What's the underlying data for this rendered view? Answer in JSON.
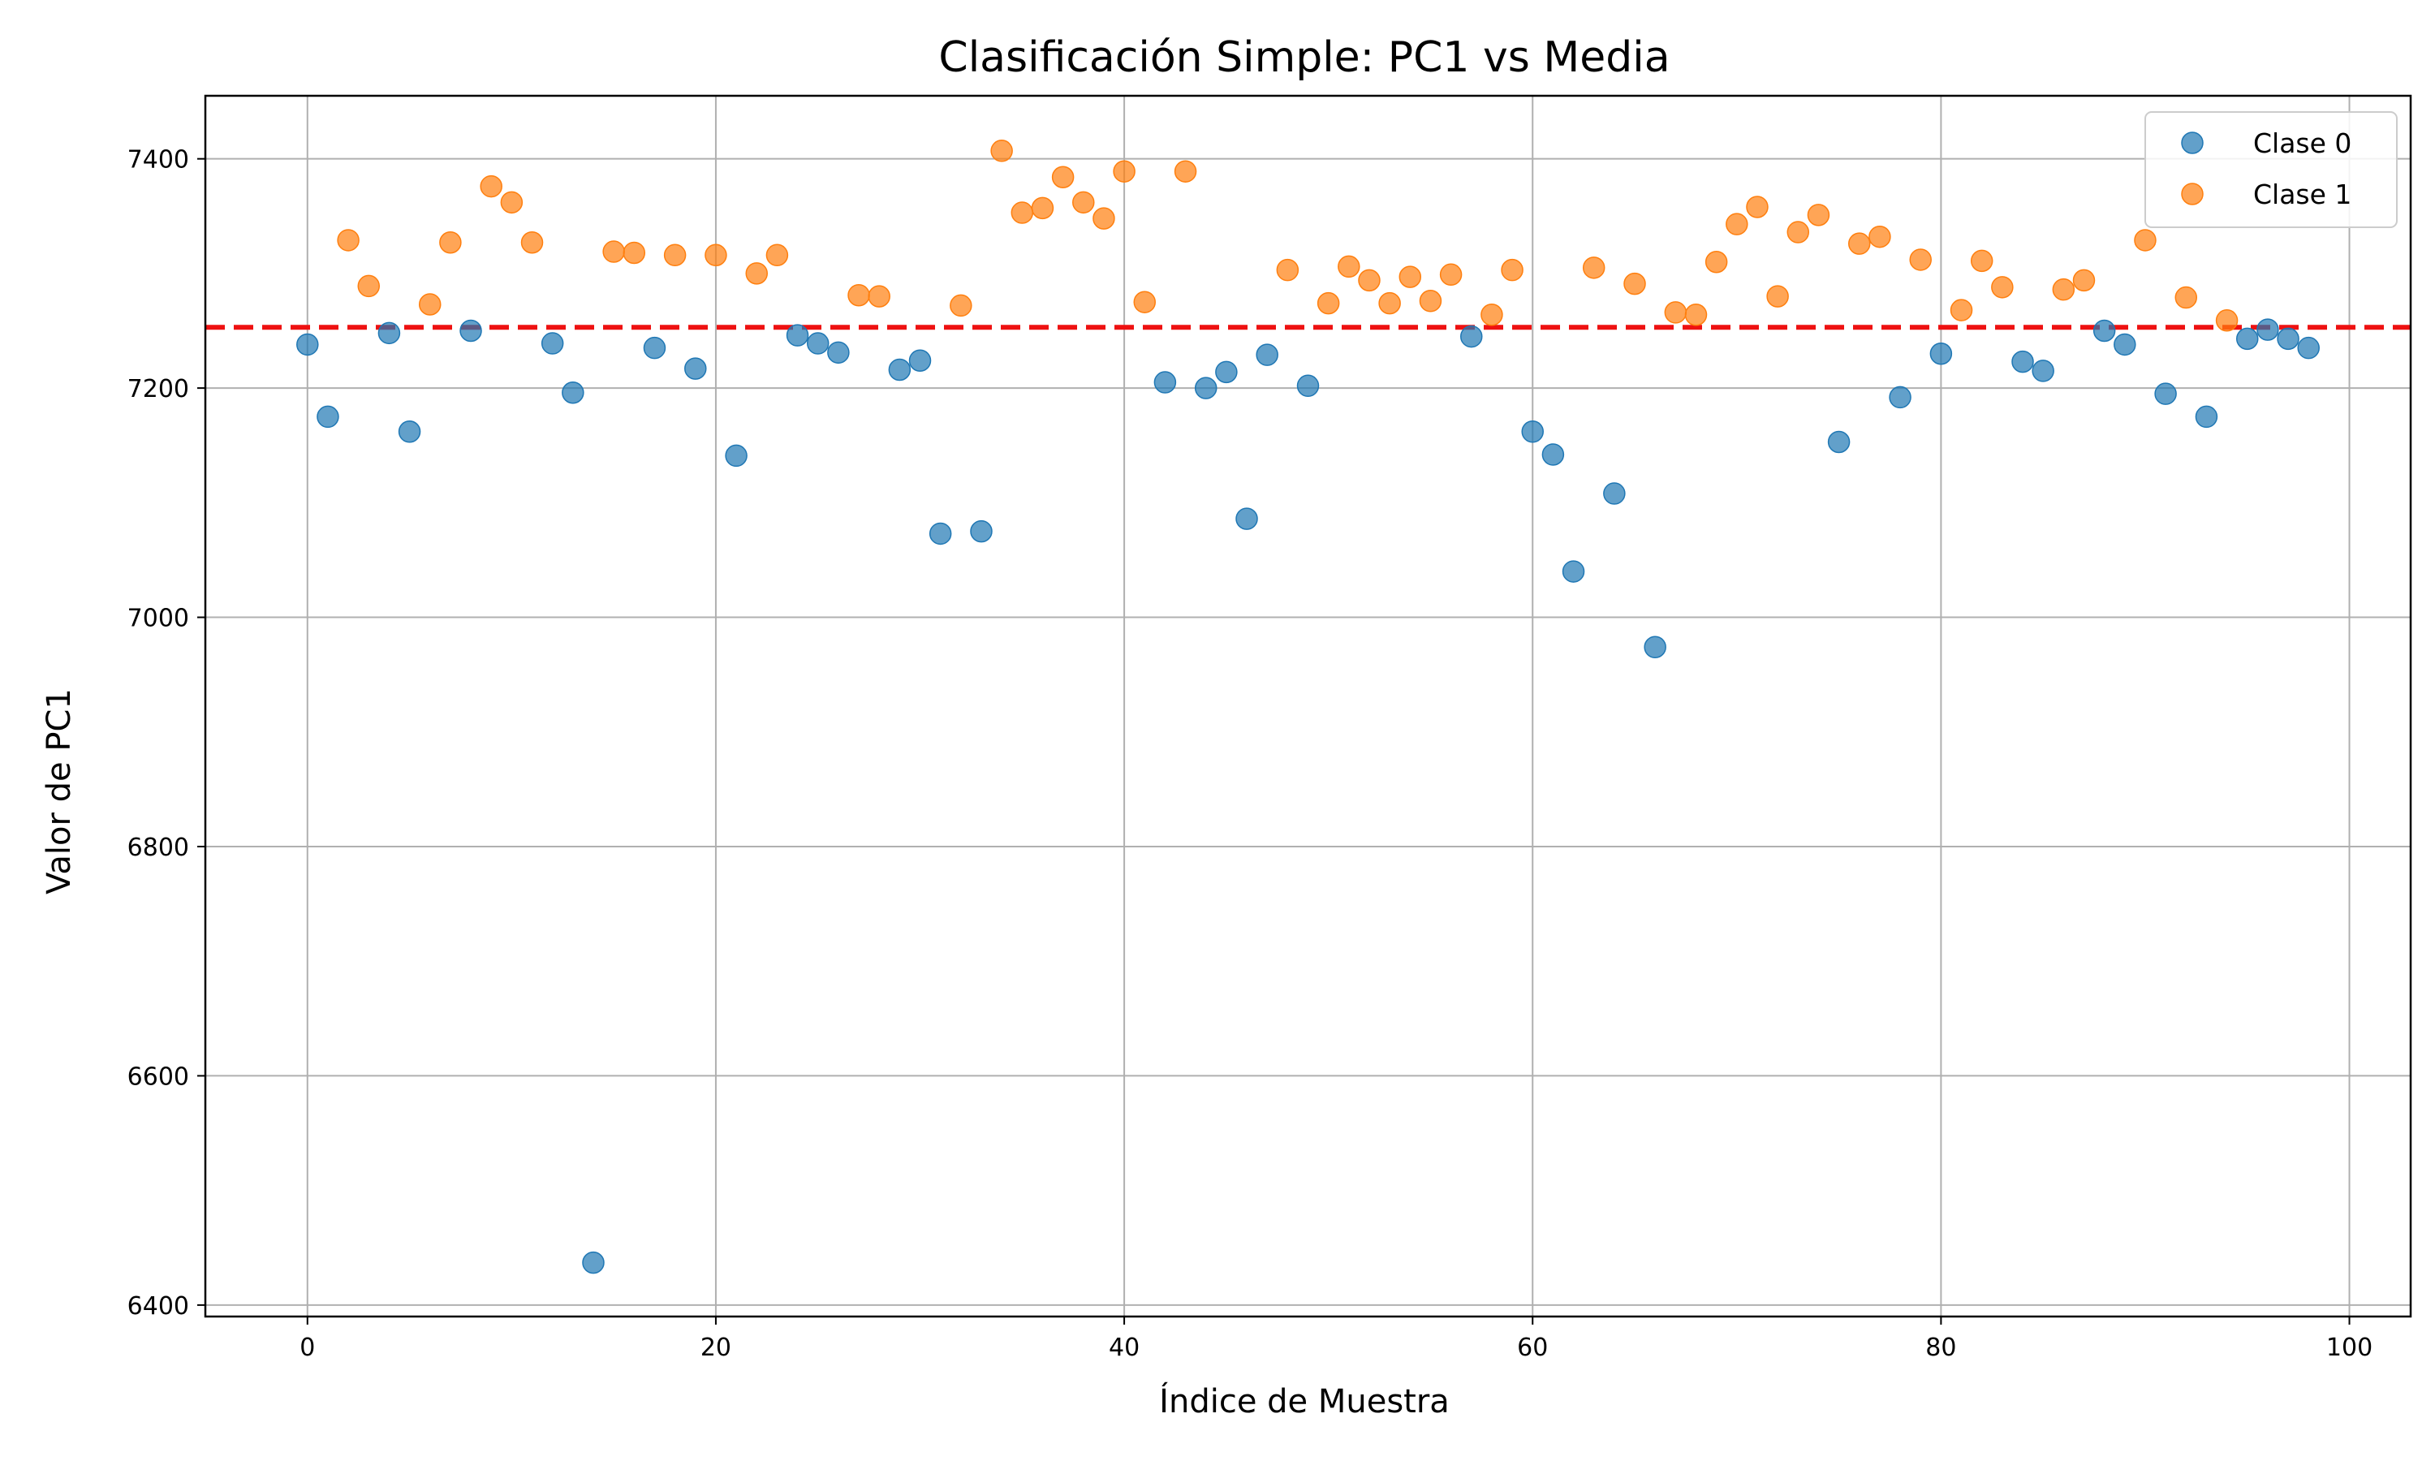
{
  "chart_data": {
    "type": "scatter",
    "title": "Clasificación Simple: PC1 vs Media",
    "xlabel": "Índice de Muestra",
    "ylabel": "Valor de PC1",
    "xlim": [
      -5,
      103
    ],
    "ylim": [
      6390,
      7455
    ],
    "xticks": [
      0,
      20,
      40,
      60,
      80,
      100
    ],
    "yticks": [
      6400,
      6600,
      6800,
      7000,
      7200,
      7400
    ],
    "grid": true,
    "legend_position": "top-right",
    "threshold": {
      "value": 7253,
      "color": "#ee1111",
      "style": "dashed"
    },
    "series": [
      {
        "name": "Clase 0",
        "color": "#1f77b4",
        "x": [
          0,
          1,
          4,
          5,
          8,
          12,
          13,
          14,
          17,
          19,
          21,
          24,
          25,
          26,
          29,
          30,
          31,
          33,
          42,
          44,
          45,
          46,
          47,
          49,
          57,
          60,
          61,
          62,
          64,
          66,
          75,
          78,
          80,
          84,
          85,
          88,
          89,
          91,
          93,
          95,
          96,
          97,
          98
        ],
        "y": [
          7238,
          7175,
          7248,
          7162,
          7250,
          7239,
          7196,
          6437,
          7235,
          7217,
          7141,
          7246,
          7239,
          7231,
          7216,
          7224,
          7073,
          7075,
          7205,
          7200,
          7214,
          7086,
          7229,
          7202,
          7245,
          7162,
          7142,
          7040,
          7108,
          6974,
          7153,
          7192,
          7230,
          7223,
          7215,
          7250,
          7238,
          7195,
          7175,
          7243,
          7251,
          7243,
          7235
        ]
      },
      {
        "name": "Clase 1",
        "color": "#ff7f0e",
        "x": [
          2,
          3,
          6,
          7,
          9,
          10,
          11,
          15,
          16,
          18,
          20,
          22,
          23,
          27,
          28,
          32,
          34,
          35,
          36,
          37,
          38,
          39,
          40,
          41,
          43,
          48,
          50,
          51,
          52,
          53,
          54,
          55,
          56,
          58,
          59,
          63,
          65,
          67,
          68,
          69,
          70,
          71,
          72,
          73,
          74,
          76,
          77,
          79,
          81,
          82,
          83,
          86,
          87,
          90,
          92,
          94
        ],
        "y": [
          7329,
          7289,
          7273,
          7327,
          7376,
          7362,
          7327,
          7319,
          7318,
          7316,
          7316,
          7300,
          7316,
          7281,
          7280,
          7272,
          7407,
          7353,
          7357,
          7384,
          7362,
          7348,
          7389,
          7275,
          7389,
          7303,
          7274,
          7306,
          7294,
          7274,
          7297,
          7276,
          7299,
          7264,
          7303,
          7305,
          7291,
          7266,
          7264,
          7310,
          7343,
          7358,
          7280,
          7336,
          7351,
          7326,
          7332,
          7312,
          7268,
          7311,
          7288,
          7286,
          7294,
          7329,
          7279,
          7259
        ]
      }
    ]
  }
}
